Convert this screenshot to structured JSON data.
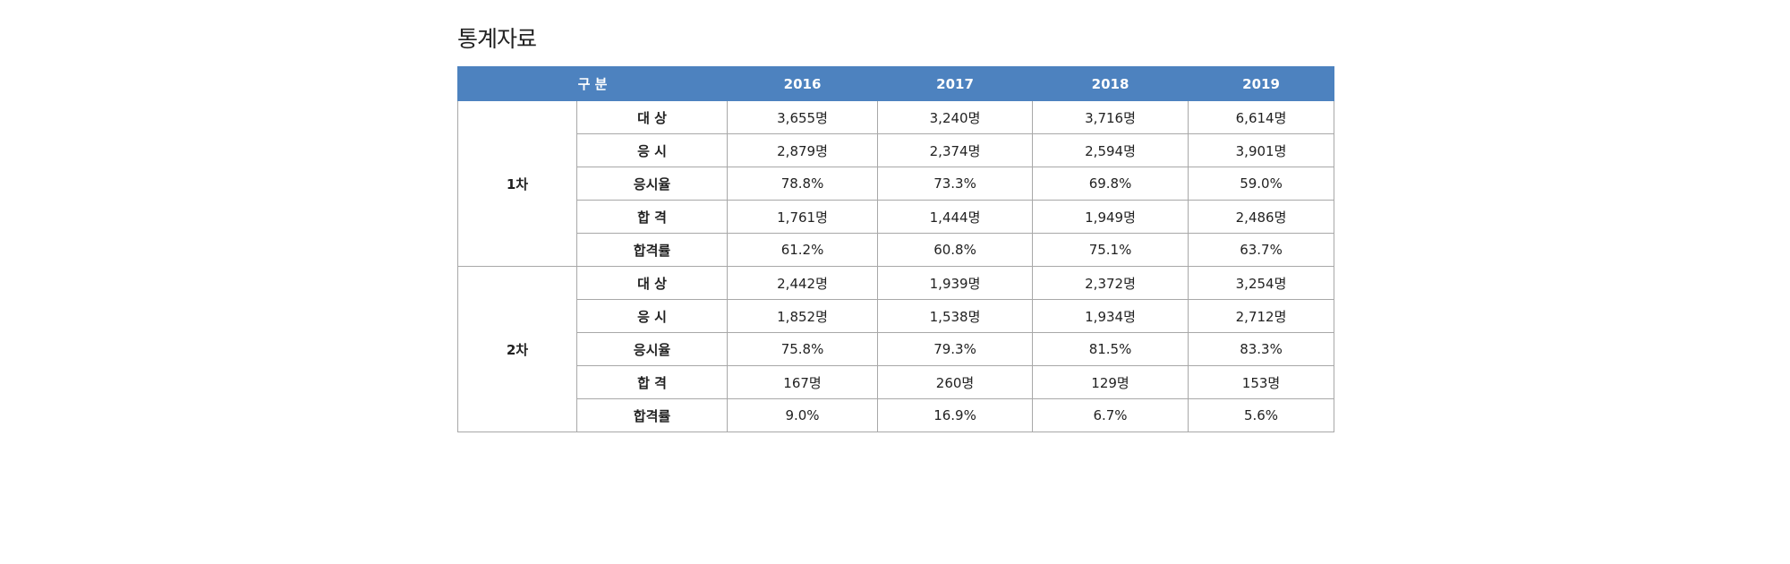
{
  "page": {
    "title": "통계자료"
  },
  "table": {
    "header": {
      "category": "구 분",
      "years": [
        "2016",
        "2017",
        "2018",
        "2019"
      ]
    },
    "groups": [
      {
        "name": "1차",
        "rows": [
          {
            "label": "대 상",
            "values": [
              "3,655명",
              "3,240명",
              "3,716명",
              "6,614명"
            ]
          },
          {
            "label": "응 시",
            "values": [
              "2,879명",
              "2,374명",
              "2,594명",
              "3,901명"
            ]
          },
          {
            "label": "응시율",
            "values": [
              "78.8%",
              "73.3%",
              "69.8%",
              "59.0%"
            ]
          },
          {
            "label": "합 격",
            "values": [
              "1,761명",
              "1,444명",
              "1,949명",
              "2,486명"
            ]
          },
          {
            "label": "합격률",
            "values": [
              "61.2%",
              "60.8%",
              "75.1%",
              "63.7%"
            ]
          }
        ]
      },
      {
        "name": "2차",
        "rows": [
          {
            "label": "대 상",
            "values": [
              "2,442명",
              "1,939명",
              "2,372명",
              "3,254명"
            ]
          },
          {
            "label": "응 시",
            "values": [
              "1,852명",
              "1,538명",
              "1,934명",
              "2,712명"
            ]
          },
          {
            "label": "응시율",
            "values": [
              "75.8%",
              "79.3%",
              "81.5%",
              "83.3%"
            ]
          },
          {
            "label": "합 격",
            "values": [
              "167명",
              "260명",
              "129명",
              "153명"
            ]
          },
          {
            "label": "합격률",
            "values": [
              "9.0%",
              "16.9%",
              "6.7%",
              "5.6%"
            ]
          }
        ]
      }
    ]
  },
  "colors": {
    "header_bg": "#4d82bf",
    "header_text": "#ffffff",
    "border": "#a8a8a8"
  }
}
